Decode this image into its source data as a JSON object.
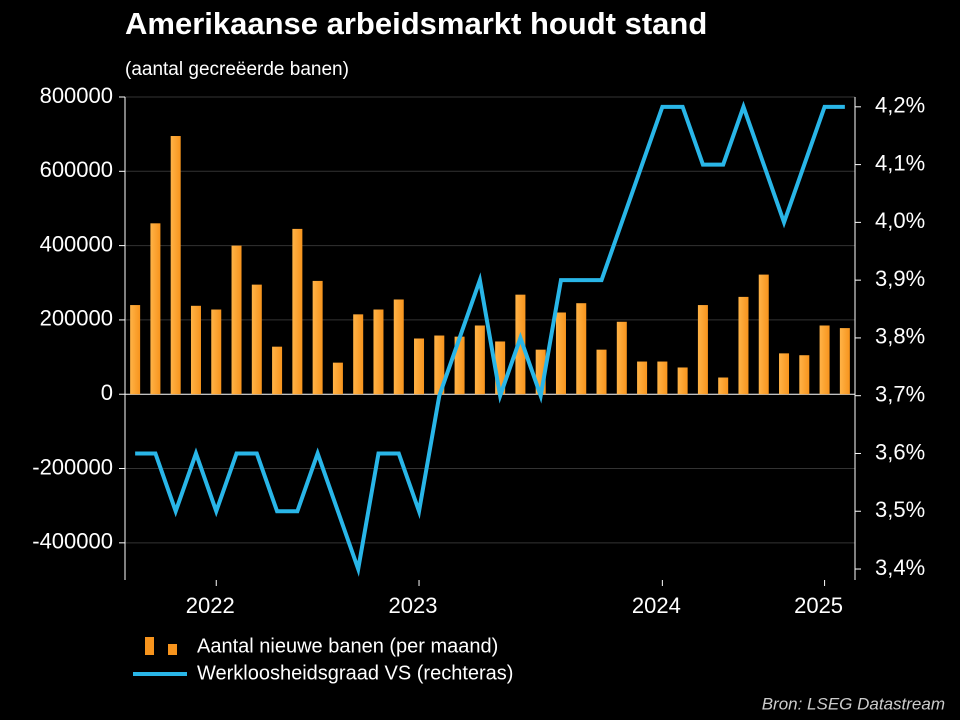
{
  "chart_data": {
    "type": "bar-line",
    "title": "Amerikaanse arbeidsmarkt houdt stand",
    "subtitle": "(aantal gecreëerde banen)",
    "source": "Bron: LSEG Datastream",
    "categories": [
      null,
      null,
      null,
      null,
      "2022",
      null,
      null,
      null,
      null,
      null,
      null,
      null,
      null,
      null,
      "2023",
      null,
      null,
      null,
      null,
      null,
      null,
      null,
      null,
      null,
      null,
      null,
      "2024",
      null,
      null,
      null,
      null,
      null,
      null,
      null,
      "2025",
      null
    ],
    "series": [
      {
        "name": "Aantal nieuwe banen (per maand)",
        "color": "#f7941d",
        "kind": "bar",
        "values": [
          240000,
          460000,
          695000,
          238000,
          228000,
          400000,
          295000,
          128000,
          445000,
          305000,
          85000,
          215000,
          228000,
          255000,
          150000,
          158000,
          155000,
          185000,
          142000,
          268000,
          120000,
          220000,
          245000,
          120000,
          195000,
          88000,
          88000,
          72000,
          240000,
          45000,
          262000,
          322000,
          110000,
          105000,
          185000,
          178000
        ]
      },
      {
        "name": "Werkloosheidsgraad VS (rechteras)",
        "color": "#29b6e8",
        "kind": "line",
        "axis": "y2",
        "values": [
          3.6,
          3.6,
          3.5,
          3.6,
          3.5,
          3.6,
          3.6,
          3.5,
          3.5,
          3.6,
          3.5,
          3.4,
          3.6,
          3.6,
          3.5,
          3.7,
          3.8,
          3.9,
          3.7,
          3.8,
          3.7,
          3.9,
          3.9,
          3.9,
          4.0,
          4.1,
          4.2,
          4.2,
          4.1,
          4.1,
          4.2,
          4.1,
          4.0,
          4.1,
          4.2,
          4.2
        ]
      }
    ],
    "ylim": [
      -500000,
      800000
    ],
    "yticks": [
      -400000,
      -200000,
      0,
      200000,
      400000,
      600000,
      800000
    ],
    "y2lim": [
      3.381,
      4.217
    ],
    "y2ticks": [
      {
        "value": 3.4,
        "label": "3,4%"
      },
      {
        "value": 3.5,
        "label": "3,5%"
      },
      {
        "value": 3.6,
        "label": "3,6%"
      },
      {
        "value": 3.7,
        "label": "3,7%"
      },
      {
        "value": 3.8,
        "label": "3,8%"
      },
      {
        "value": 3.9,
        "label": "3,9%"
      },
      {
        "value": 4.0,
        "label": "4,0%"
      },
      {
        "value": 4.1,
        "label": "4,1%"
      },
      {
        "value": 4.2,
        "label": "4,2%"
      }
    ],
    "grid": true
  }
}
